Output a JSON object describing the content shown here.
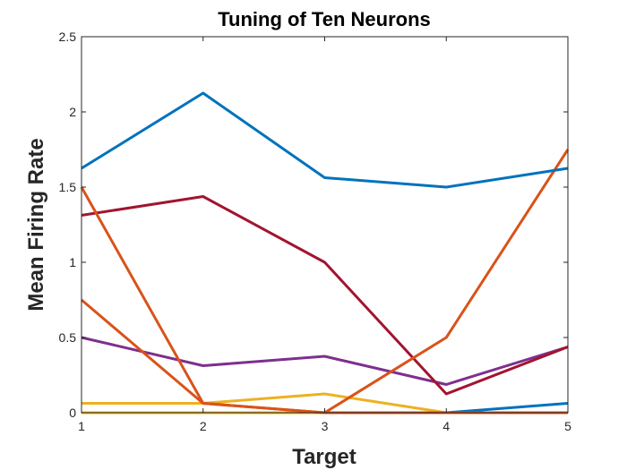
{
  "chart_data": {
    "type": "line",
    "title": "Tuning of Ten Neurons",
    "xlabel": "Target",
    "ylabel": "Mean Firing Rate",
    "xlim": [
      1,
      5
    ],
    "ylim": [
      0,
      2.5
    ],
    "x": [
      1,
      2,
      3,
      4,
      5
    ],
    "xticks": [
      "1",
      "2",
      "3",
      "4",
      "5"
    ],
    "yticks": [
      "0",
      "0.5",
      "1",
      "1.5",
      "2",
      "2.5"
    ],
    "grid": false,
    "series": [
      {
        "color": "#0072BD",
        "values": [
          1.625,
          2.125,
          1.5625,
          1.5,
          1.625
        ]
      },
      {
        "color": "#D95319",
        "values": [
          1.5,
          0.0625,
          0,
          0,
          0
        ]
      },
      {
        "color": "#D95319",
        "values": [
          0.75,
          0.0625,
          0,
          0.5,
          1.75
        ]
      },
      {
        "color": "#A2142F",
        "values": [
          1.3125,
          1.4375,
          1.0,
          0.125,
          0.4375
        ]
      },
      {
        "color": "#7E2F8E",
        "values": [
          0.5,
          0.3125,
          0.375,
          0.1875,
          0.4375
        ]
      },
      {
        "color": "#EDB120",
        "values": [
          0.0625,
          0.0625,
          0.125,
          0,
          0
        ]
      },
      {
        "color": "#EDB120",
        "values": [
          0,
          0,
          0,
          0,
          0
        ]
      },
      {
        "color": "#0072BD",
        "values": [
          0,
          0,
          0,
          0,
          0.0625
        ]
      },
      {
        "color": "#4DBEEE",
        "values": [
          0,
          0,
          0,
          0,
          0
        ]
      },
      {
        "color": "#77AC30",
        "values": [
          0,
          0,
          0,
          0,
          0
        ]
      }
    ]
  }
}
